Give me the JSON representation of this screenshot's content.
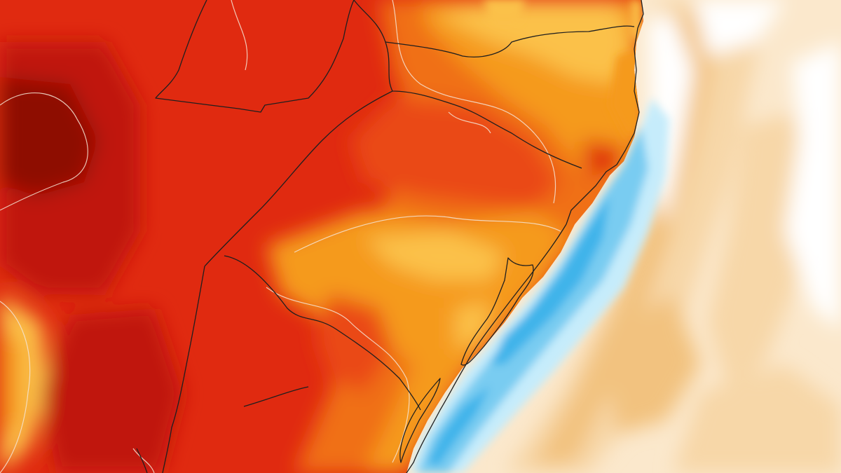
{
  "map": {
    "palette": {
      "ocean_base": "#fbe8cc",
      "ocean_light": "#f7d7a8",
      "ocean_mid": "#f2c27f",
      "ocean_white": "#ffffff",
      "cold_light": "#c6ecfb",
      "cold_mid": "#79ccf1",
      "cold_deep": "#3fb4ea",
      "land_yellow": "#fbc14a",
      "land_orange": "#f59a1e",
      "land_dark_orange": "#f07014",
      "land_red_orange": "#ea4a12",
      "land_red": "#e02a10",
      "land_deep_red": "#c01808",
      "land_maroon": "#8e0d06",
      "border": "#1f1f1f",
      "isoline": "#f4e4d4"
    }
  }
}
